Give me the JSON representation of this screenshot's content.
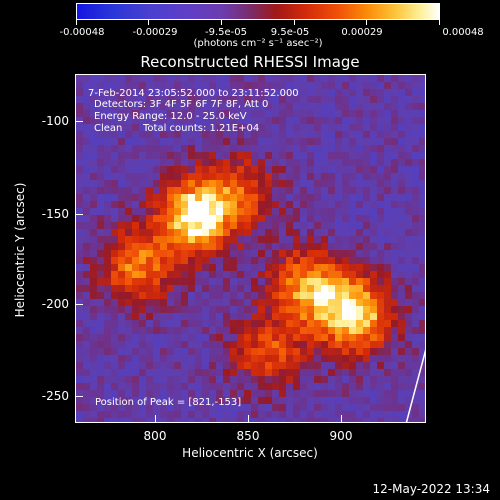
{
  "colorbar": {
    "labels": [
      "-0.00048",
      "-0.00029",
      "-9.5e-05",
      "9.5e-05",
      "0.00029",
      "0.00048"
    ],
    "units": "(photons cm⁻² s⁻¹ asec⁻²)"
  },
  "title": "Reconstructed RHESSI Image",
  "info": {
    "time_range": "7-Feb-2014 23:05:52.000 to 23:11:52.000",
    "detectors": "Detectors: 3F 4F 5F 6F 7F 8F, Att 0",
    "energy": "Energy Range: 12.0 - 25.0 keV",
    "algorithm": "Clean",
    "total_counts": "Total counts: 1.21E+04",
    "peak": "Position of Peak = [821,-153]"
  },
  "y_ticks": [
    "-100",
    "-150",
    "-200",
    "-250"
  ],
  "x_ticks": [
    "800",
    "850",
    "900"
  ],
  "y_title": "Heliocentric Y (arcsec)",
  "x_title": "Heliocentric X (arcsec)",
  "timestamp": "12-May-2022 13:34",
  "chart_data": {
    "type": "heatmap",
    "title": "Reconstructed RHESSI Image",
    "xlabel": "Heliocentric X (arcsec)",
    "ylabel": "Heliocentric Y (arcsec)",
    "xlim": [
      760,
      945
    ],
    "ylim": [
      -265,
      -80
    ],
    "colorbar_range": [
      -0.00048,
      0.00048
    ],
    "peak_position": [
      821,
      -153
    ],
    "sources": [
      {
        "x": 821,
        "y": -153,
        "intensity": 1.0
      },
      {
        "x": 905,
        "y": -205,
        "intensity": 0.95
      },
      {
        "x": 880,
        "y": -190,
        "intensity": 0.7
      },
      {
        "x": 790,
        "y": -180,
        "intensity": 0.65
      },
      {
        "x": 860,
        "y": -225,
        "intensity": 0.5
      },
      {
        "x": 845,
        "y": -140,
        "intensity": 0.45
      }
    ]
  }
}
